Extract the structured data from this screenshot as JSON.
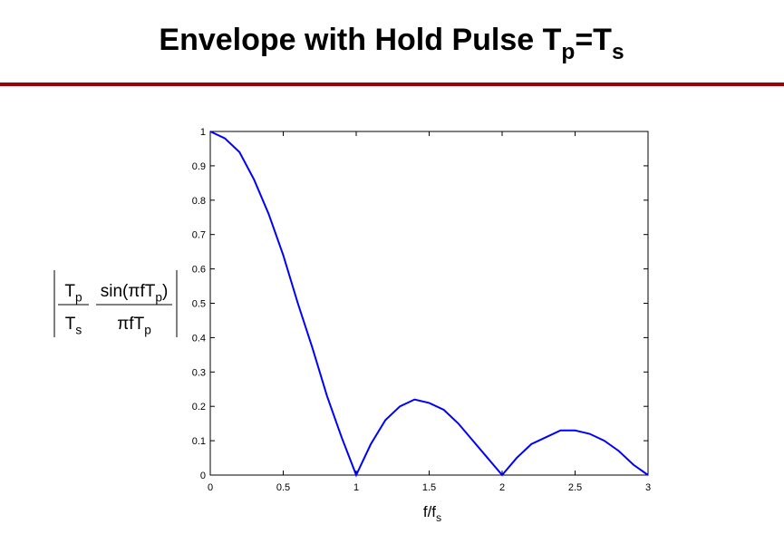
{
  "chart_data": {
    "type": "line",
    "title_parts": [
      "Envelope with Hold Pulse T",
      "p",
      "=T",
      "s"
    ],
    "xlabel_parts": [
      "f/f",
      "s"
    ],
    "ylabel": {
      "ratio_num": [
        "T",
        "p"
      ],
      "ratio_den": [
        "T",
        "s"
      ],
      "sinc_num": [
        "sin(",
        "π",
        "fT",
        "p",
        ")"
      ],
      "sinc_den": [
        "π",
        "fT",
        "p"
      ]
    },
    "x": [
      0,
      0.1,
      0.2,
      0.3,
      0.4,
      0.5,
      0.6,
      0.7,
      0.8,
      0.9,
      1,
      1.1,
      1.2,
      1.3,
      1.4,
      1.5,
      1.6,
      1.7,
      1.8,
      1.9,
      2,
      2.1,
      2.2,
      2.3,
      2.4,
      2.5,
      2.6,
      2.7,
      2.8,
      2.9,
      3
    ],
    "series": [
      {
        "color": "#0000ff",
        "values": [
          1,
          0.98,
          0.94,
          0.86,
          0.76,
          0.64,
          0.5,
          0.37,
          0.23,
          0.11,
          0,
          0.09,
          0.16,
          0.2,
          0.22,
          0.21,
          0.19,
          0.15,
          0.1,
          0.05,
          0,
          0.05,
          0.09,
          0.11,
          0.13,
          0.13,
          0.12,
          0.1,
          0.07,
          0.03,
          0
        ]
      }
    ],
    "xlim": [
      0,
      3
    ],
    "xticks": [
      0,
      0.5,
      1,
      1.5,
      2,
      2.5,
      3
    ],
    "ylim": [
      0,
      1
    ],
    "yticks": [
      0,
      0.1,
      0.2,
      0.3,
      0.4,
      0.5,
      0.6,
      0.7,
      0.8,
      0.9,
      1
    ],
    "grid": false
  }
}
